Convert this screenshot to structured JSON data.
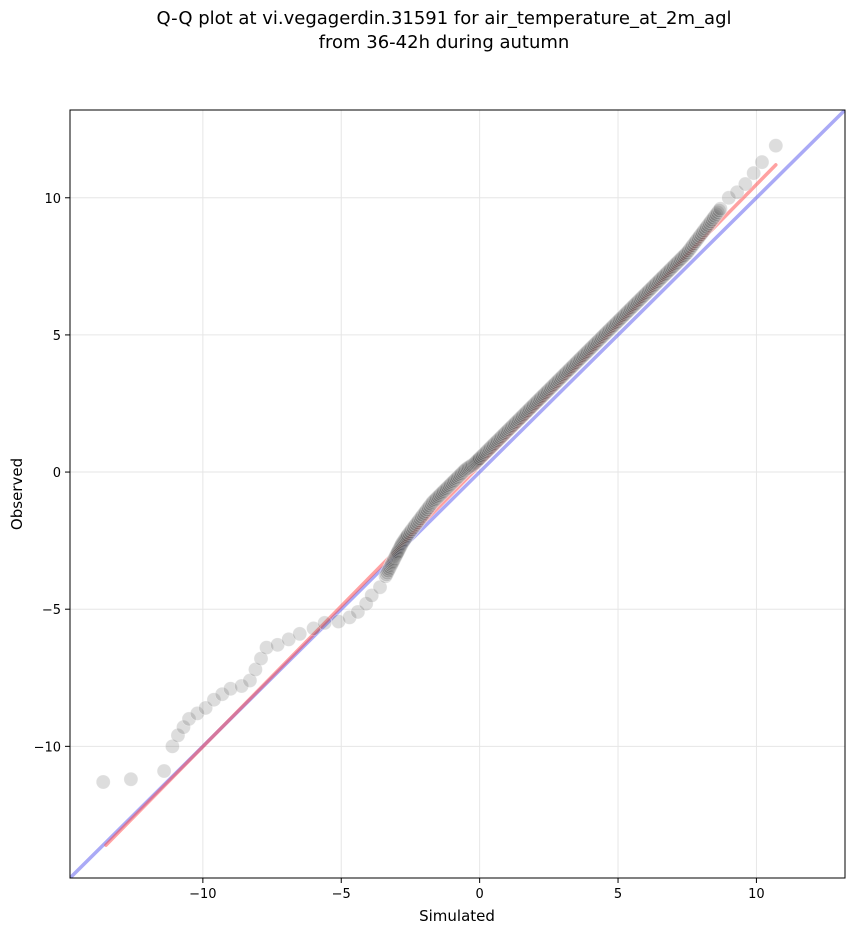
{
  "chart_data": {
    "type": "scatter",
    "title_line1": "Q-Q plot at vi.vegagerdin.31591 for air_temperature_at_2m_agl",
    "title_line2": "from 36-42h during autumn",
    "xlabel": "Simulated",
    "ylabel": "Observed",
    "xlim": [
      -14.8,
      13.2
    ],
    "ylim": [
      -14.8,
      13.2
    ],
    "xticks": [
      -10,
      -5,
      0,
      5,
      10
    ],
    "yticks": [
      -10,
      -5,
      0,
      5,
      10
    ],
    "xtick_labels": [
      "−10",
      "−5",
      "0",
      "5",
      "10"
    ],
    "ytick_labels": [
      "−10",
      "−5",
      "0",
      "5",
      "10"
    ],
    "grid": true,
    "colors": {
      "points": "#555555",
      "fit_line": "#ff4444",
      "identity_line": "#5555ee"
    },
    "series": [
      {
        "kind": "quantile_points",
        "x": [
          -13.6,
          -12.6,
          -11.4,
          -11.1,
          -10.9,
          -10.7,
          -10.5,
          -10.2,
          -9.9,
          -9.6,
          -9.3,
          -9.0,
          -8.6,
          -8.3,
          -8.1,
          -7.9,
          -7.7,
          -7.3,
          -6.9,
          -6.5,
          -6.0,
          -5.6,
          -5.1,
          -4.7,
          -4.4,
          -4.1,
          -3.9,
          -3.6,
          -3.4,
          -3.2,
          -3.05,
          -2.95,
          -2.8,
          -2.6,
          -2.3,
          -2.0,
          -1.7,
          -1.4,
          -1.1,
          -0.8,
          -0.5,
          -0.2,
          0.0,
          0.3,
          0.6,
          0.9,
          1.2,
          1.5,
          1.8,
          2.1,
          2.4,
          2.7,
          3.0,
          3.3,
          3.6,
          3.9,
          4.2,
          4.5,
          4.8,
          5.1,
          5.4,
          5.7,
          6.0,
          6.3,
          6.6,
          6.9,
          7.2,
          7.5,
          7.8,
          8.1,
          8.4,
          8.7,
          9.0,
          9.3,
          9.6,
          9.9,
          10.2,
          10.7
        ],
        "y": [
          -11.3,
          -11.2,
          -10.9,
          -10.0,
          -9.6,
          -9.3,
          -9.0,
          -8.8,
          -8.6,
          -8.3,
          -8.1,
          -7.9,
          -7.8,
          -7.6,
          -7.2,
          -6.8,
          -6.4,
          -6.3,
          -6.1,
          -5.9,
          -5.7,
          -5.5,
          -5.45,
          -5.3,
          -5.1,
          -4.8,
          -4.5,
          -4.2,
          -3.8,
          -3.4,
          -3.1,
          -2.9,
          -2.6,
          -2.3,
          -1.9,
          -1.5,
          -1.1,
          -0.8,
          -0.5,
          -0.2,
          0.1,
          0.3,
          0.5,
          0.8,
          1.1,
          1.4,
          1.7,
          2.0,
          2.3,
          2.6,
          2.9,
          3.2,
          3.5,
          3.8,
          4.1,
          4.4,
          4.7,
          5.0,
          5.3,
          5.6,
          5.9,
          6.2,
          6.5,
          6.8,
          7.1,
          7.4,
          7.7,
          8.0,
          8.4,
          8.8,
          9.2,
          9.6,
          10.0,
          10.2,
          10.5,
          10.9,
          11.3,
          11.9
        ]
      },
      {
        "kind": "fit_line",
        "x": [
          -13.5,
          10.7
        ],
        "y": [
          -13.6,
          11.2
        ]
      },
      {
        "kind": "identity_line",
        "x": [
          -14.8,
          13.2
        ],
        "y": [
          -14.8,
          13.2
        ]
      }
    ]
  }
}
